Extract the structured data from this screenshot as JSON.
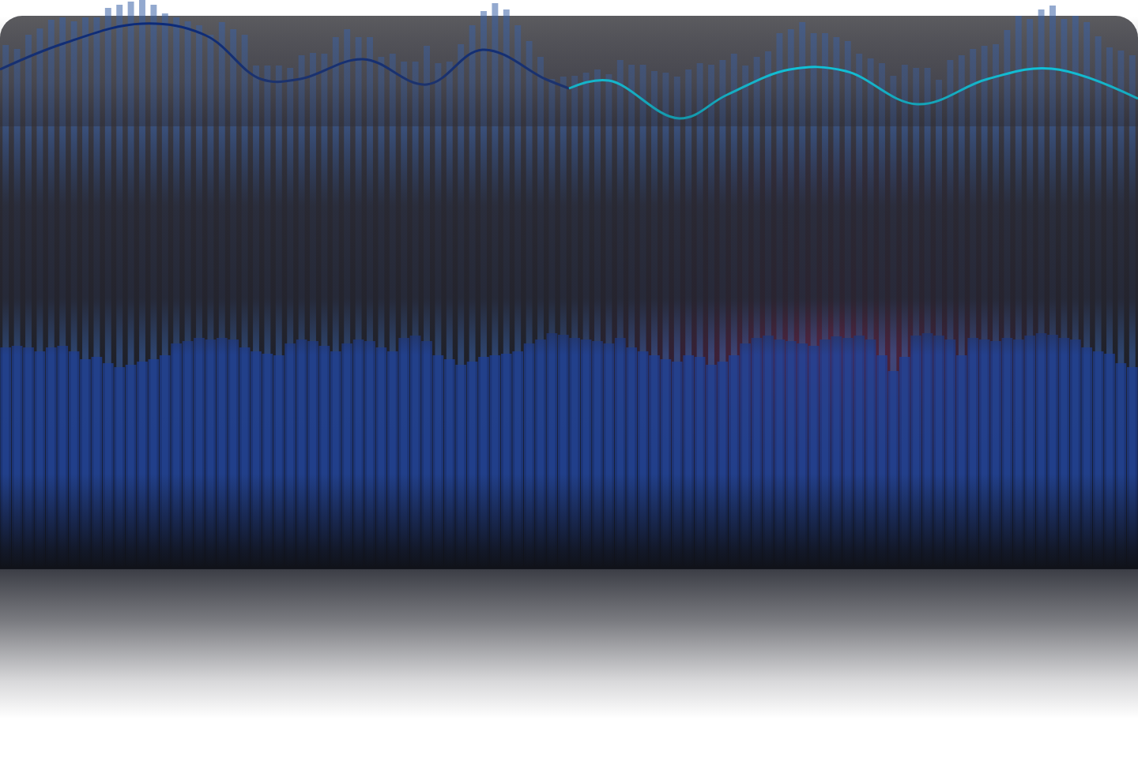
{
  "chart_data": {
    "type": "bar",
    "tick_labels": false,
    "grid": false,
    "xlim": [
      -0.5,
      99.5
    ],
    "ylim": [
      0,
      720
    ],
    "series": [
      {
        "type": "bar",
        "color": "#3b63a8",
        "x": [
          0,
          1,
          2,
          3,
          4,
          5,
          6,
          7,
          8,
          9,
          10,
          11,
          12,
          13,
          14,
          15,
          16,
          17,
          18,
          19,
          20,
          21,
          22,
          23,
          24,
          25,
          26,
          27,
          28,
          29,
          30,
          31,
          32,
          33,
          34,
          35,
          36,
          37,
          38,
          39,
          40,
          41,
          42,
          43,
          44,
          45,
          46,
          47,
          48,
          49,
          50,
          51,
          52,
          53,
          54,
          55,
          56,
          57,
          58,
          59,
          60,
          61,
          62,
          63,
          64,
          65,
          66,
          67,
          68,
          69,
          70,
          71,
          72,
          73,
          74,
          75,
          76,
          77,
          78,
          79,
          80,
          81,
          82,
          83,
          84,
          85,
          86,
          87,
          88,
          89,
          90,
          91,
          92,
          93,
          94,
          95,
          96,
          97,
          98,
          99
        ],
        "values": [
          663,
          658,
          676,
          684,
          695,
          698,
          693,
          698,
          698,
          710,
          714,
          718,
          720,
          714,
          703,
          698,
          693,
          688,
          676,
          692,
          683,
          676,
          637,
          637,
          637,
          634,
          650,
          653,
          652,
          673,
          683,
          673,
          673,
          648,
          652,
          642,
          642,
          662,
          640,
          642,
          664,
          688,
          706,
          716,
          708,
          688,
          668,
          648,
          620,
          623,
          624,
          628,
          632,
          626,
          644,
          638,
          638,
          630,
          628,
          623,
          632,
          640,
          638,
          644,
          652,
          637,
          648,
          655,
          678,
          683,
          692,
          678,
          678,
          673,
          668,
          652,
          646,
          640,
          624,
          638,
          634,
          634,
          619,
          644,
          650,
          658,
          662,
          664,
          682,
          700,
          696,
          708,
          713,
          696,
          700,
          692,
          674,
          660,
          656,
          650
        ]
      },
      {
        "type": "bar",
        "color": "#1f3f94",
        "x": [
          0,
          1,
          2,
          3,
          4,
          5,
          6,
          7,
          8,
          9,
          10,
          11,
          12,
          13,
          14,
          15,
          16,
          17,
          18,
          19,
          20,
          21,
          22,
          23,
          24,
          25,
          26,
          27,
          28,
          29,
          30,
          31,
          32,
          33,
          34,
          35,
          36,
          37,
          38,
          39,
          40,
          41,
          42,
          43,
          44,
          45,
          46,
          47,
          48,
          49,
          50,
          51,
          52,
          53,
          54,
          55,
          56,
          57,
          58,
          59,
          60,
          61,
          62,
          63,
          64,
          65,
          66,
          67,
          68,
          69,
          70,
          71,
          72,
          73,
          74,
          75,
          76,
          77,
          78,
          79,
          80,
          81,
          82,
          83,
          84,
          85,
          86,
          87,
          88,
          89,
          90,
          91,
          92,
          93,
          94,
          95,
          96,
          97,
          98,
          99
        ],
        "values": [
          280,
          282,
          280,
          275,
          280,
          282,
          275,
          265,
          268,
          260,
          255,
          258,
          262,
          265,
          270,
          285,
          288,
          292,
          290,
          292,
          290,
          280,
          275,
          272,
          270,
          285,
          290,
          288,
          282,
          275,
          285,
          290,
          288,
          280,
          275,
          292,
          295,
          288,
          270,
          265,
          258,
          262,
          268,
          270,
          272,
          275,
          285,
          290,
          298,
          296,
          292,
          290,
          288,
          285,
          292,
          280,
          275,
          270,
          265,
          262,
          270,
          268,
          258,
          262,
          270,
          285,
          292,
          295,
          290,
          288,
          285,
          282,
          290,
          294,
          292,
          295,
          290,
          270,
          250,
          268,
          295,
          298,
          295,
          290,
          270,
          292,
          290,
          288,
          292,
          290,
          295,
          298,
          296,
          292,
          290,
          280,
          275,
          272,
          260,
          255
        ]
      },
      {
        "type": "line",
        "color": "#0a2a7a",
        "line_style": "spline",
        "x": [
          -0.5,
          5.1,
          12,
          17.6,
          22.4,
          25.9,
          31.4,
          37,
          41.9,
          47.4,
          49.5
        ],
        "values": [
          632,
          665,
          690,
          675,
          620,
          620,
          645,
          613,
          657,
          620,
          608
        ]
      },
      {
        "type": "line",
        "color": "#00e5ff",
        "line_style": "spline",
        "x": [
          49.5,
          53,
          59.2,
          63.4,
          68.9,
          73.8,
          80.1,
          86.3,
          91.9,
          99.5
        ],
        "values": [
          608,
          618,
          570,
          600,
          632,
          630,
          588,
          620,
          633,
          595
        ]
      }
    ]
  }
}
